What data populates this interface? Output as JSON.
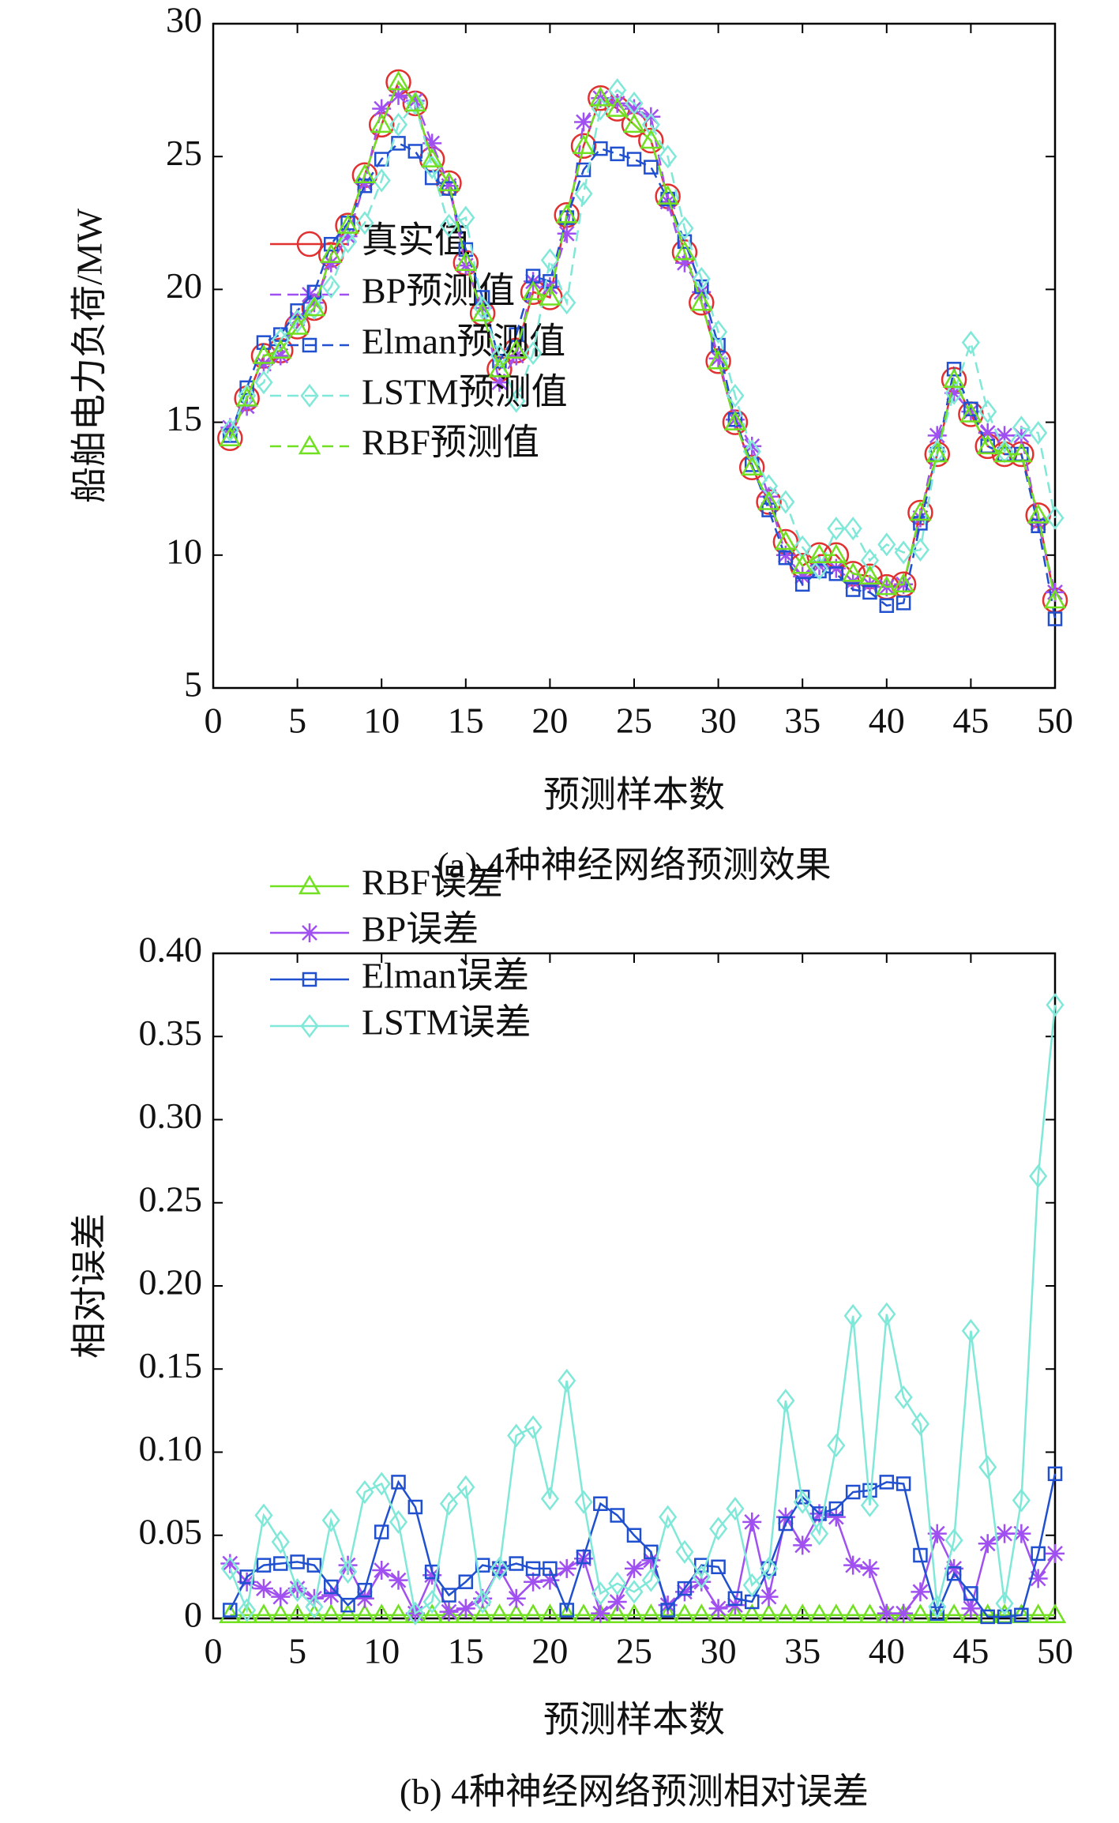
{
  "chart_data": [
    {
      "type": "line",
      "title": "(a) 4种神经网络预测效果",
      "xlabel": "预测样本数",
      "ylabel": "船舶电力负荷/MW",
      "x": [
        1,
        2,
        3,
        4,
        5,
        6,
        7,
        8,
        9,
        10,
        11,
        12,
        13,
        14,
        15,
        16,
        17,
        18,
        19,
        20,
        21,
        22,
        23,
        24,
        25,
        26,
        27,
        28,
        29,
        30,
        31,
        32,
        33,
        34,
        35,
        36,
        37,
        38,
        39,
        40,
        41,
        42,
        43,
        44,
        45,
        46,
        47,
        48,
        49,
        50
      ],
      "xlim": [
        0,
        50
      ],
      "xticks": [
        0,
        5,
        10,
        15,
        20,
        25,
        30,
        35,
        40,
        45,
        50
      ],
      "ylim": [
        5,
        30
      ],
      "yticks": [
        5,
        10,
        15,
        20,
        25,
        30
      ],
      "legend": "left",
      "series": [
        {
          "name": "真实值",
          "color": "#e03030",
          "marker": "circle",
          "dashed": false,
          "values": [
            14.4,
            15.9,
            17.5,
            17.7,
            18.6,
            19.3,
            21.3,
            22.4,
            24.3,
            26.2,
            27.8,
            27.0,
            24.9,
            24.0,
            21.0,
            19.1,
            17.0,
            17.7,
            19.9,
            19.7,
            22.8,
            25.4,
            27.2,
            26.8,
            26.2,
            25.6,
            23.5,
            21.4,
            19.5,
            17.3,
            15.0,
            13.3,
            12.0,
            10.5,
            9.6,
            10.0,
            10.0,
            9.3,
            9.2,
            8.8,
            8.9,
            11.6,
            13.8,
            16.6,
            15.3,
            14.1,
            13.8,
            13.8,
            11.5,
            8.3
          ]
        },
        {
          "name": "BP预测值",
          "color": "#a050f0",
          "marker": "star",
          "dashed": true,
          "values": [
            14.8,
            15.6,
            17.2,
            17.5,
            18.9,
            19.5,
            21.0,
            22.0,
            24.0,
            26.8,
            27.3,
            27.1,
            25.5,
            23.9,
            20.9,
            19.3,
            16.5,
            17.5,
            20.3,
            20.1,
            22.1,
            26.3,
            27.2,
            27.0,
            26.8,
            26.5,
            23.3,
            21.0,
            19.9,
            17.4,
            15.1,
            14.1,
            12.2,
            10.0,
            9.2,
            9.6,
            9.5,
            9.0,
            8.9,
            8.8,
            8.9,
            11.4,
            14.5,
            16.1,
            15.4,
            14.6,
            14.5,
            14.5,
            11.2,
            8.6
          ]
        },
        {
          "name": "Elman预测值",
          "color": "#2050d0",
          "marker": "square",
          "dashed": true,
          "values": [
            14.5,
            16.3,
            18.0,
            18.3,
            19.2,
            19.9,
            21.7,
            22.5,
            23.9,
            24.9,
            25.5,
            25.2,
            24.2,
            23.8,
            21.5,
            19.7,
            17.3,
            18.3,
            20.5,
            20.3,
            22.7,
            24.5,
            25.3,
            25.1,
            24.9,
            24.6,
            23.4,
            21.8,
            20.1,
            17.9,
            15.1,
            13.4,
            11.7,
            9.9,
            8.9,
            9.4,
            9.3,
            8.7,
            8.6,
            8.1,
            8.2,
            11.2,
            13.8,
            17.0,
            15.5,
            14.1,
            13.8,
            13.8,
            11.1,
            7.6
          ]
        },
        {
          "name": "LSTM预测值",
          "color": "#80e8d8",
          "marker": "diamond",
          "dashed": true,
          "values": [
            14.7,
            16.0,
            16.5,
            18.1,
            18.8,
            19.3,
            20.1,
            21.8,
            22.5,
            24.1,
            26.2,
            27.0,
            24.6,
            22.4,
            22.7,
            19.3,
            17.5,
            15.8,
            17.6,
            21.1,
            19.5,
            23.6,
            26.8,
            27.5,
            27.0,
            26.2,
            25.0,
            22.3,
            20.4,
            18.4,
            16.0,
            13.9,
            12.6,
            12.0,
            10.3,
            9.5,
            11.0,
            11.0,
            9.8,
            10.4,
            10.1,
            10.2,
            13.9,
            16.1,
            18.0,
            15.4,
            13.9,
            14.8,
            14.6,
            11.4
          ]
        },
        {
          "name": "RBF预测值",
          "color": "#70e020",
          "marker": "triangle",
          "dashed": true,
          "values": [
            14.4,
            15.9,
            17.5,
            17.7,
            18.6,
            19.3,
            21.3,
            22.4,
            24.3,
            26.2,
            27.8,
            27.0,
            24.9,
            24.0,
            21.0,
            19.1,
            17.0,
            17.7,
            19.9,
            19.7,
            22.8,
            25.4,
            27.2,
            26.8,
            26.2,
            25.6,
            23.5,
            21.4,
            19.5,
            17.3,
            15.0,
            13.3,
            12.0,
            10.5,
            9.6,
            10.0,
            10.0,
            9.3,
            9.2,
            8.8,
            8.9,
            11.6,
            13.8,
            16.6,
            15.3,
            14.1,
            13.8,
            13.8,
            11.5,
            8.3
          ]
        }
      ]
    },
    {
      "type": "line",
      "title": "(b) 4种神经网络预测相对误差",
      "xlabel": "预测样本数",
      "ylabel": "相对误差",
      "x": [
        1,
        2,
        3,
        4,
        5,
        6,
        7,
        8,
        9,
        10,
        11,
        12,
        13,
        14,
        15,
        16,
        17,
        18,
        19,
        20,
        21,
        22,
        23,
        24,
        25,
        26,
        27,
        28,
        29,
        30,
        31,
        32,
        33,
        34,
        35,
        36,
        37,
        38,
        39,
        40,
        41,
        42,
        43,
        44,
        45,
        46,
        47,
        48,
        49,
        50
      ],
      "xlim": [
        0,
        50
      ],
      "xticks": [
        0,
        5,
        10,
        15,
        20,
        25,
        30,
        35,
        40,
        45,
        50
      ],
      "ylim": [
        0,
        0.4
      ],
      "yticks": [
        0,
        0.05,
        {
          "value": 0.1,
          "label": "0.10"
        },
        0.15,
        {
          "value": 0.2,
          "label": "0.20"
        },
        0.25,
        {
          "value": 0.3,
          "label": "0.30"
        },
        0.35,
        {
          "value": 0.4,
          "label": "0.40"
        }
      ],
      "legend": "left",
      "series": [
        {
          "name": "RBF误差",
          "color": "#70e020",
          "marker": "triangle",
          "dashed": false,
          "values": [
            0.002,
            0.002,
            0.002,
            0.002,
            0.002,
            0.002,
            0.002,
            0.002,
            0.002,
            0.002,
            0.002,
            0.002,
            0.002,
            0.002,
            0.002,
            0.002,
            0.002,
            0.002,
            0.002,
            0.002,
            0.002,
            0.002,
            0.002,
            0.002,
            0.002,
            0.002,
            0.002,
            0.002,
            0.002,
            0.002,
            0.002,
            0.002,
            0.002,
            0.002,
            0.002,
            0.002,
            0.002,
            0.002,
            0.002,
            0.002,
            0.002,
            0.002,
            0.002,
            0.002,
            0.002,
            0.002,
            0.002,
            0.002,
            0.002,
            0.002
          ]
        },
        {
          "name": "BP误差",
          "color": "#a050f0",
          "marker": "star",
          "dashed": false,
          "values": [
            0.033,
            0.022,
            0.018,
            0.013,
            0.018,
            0.012,
            0.014,
            0.032,
            0.012,
            0.029,
            0.023,
            0.003,
            0.026,
            0.004,
            0.006,
            0.012,
            0.03,
            0.012,
            0.022,
            0.023,
            0.03,
            0.036,
            0.003,
            0.01,
            0.03,
            0.035,
            0.008,
            0.016,
            0.022,
            0.006,
            0.008,
            0.058,
            0.013,
            0.061,
            0.044,
            0.063,
            0.061,
            0.032,
            0.03,
            0.003,
            0.003,
            0.016,
            0.051,
            0.03,
            0.006,
            0.045,
            0.051,
            0.051,
            0.024,
            0.039
          ]
        },
        {
          "name": "Elman误差",
          "color": "#2050d0",
          "marker": "square",
          "dashed": false,
          "values": [
            0.005,
            0.025,
            0.032,
            0.033,
            0.034,
            0.032,
            0.019,
            0.008,
            0.017,
            0.052,
            0.082,
            0.067,
            0.028,
            0.014,
            0.022,
            0.032,
            0.03,
            0.033,
            0.03,
            0.03,
            0.005,
            0.037,
            0.069,
            0.062,
            0.05,
            0.04,
            0.005,
            0.018,
            0.032,
            0.031,
            0.012,
            0.01,
            0.03,
            0.057,
            0.073,
            0.063,
            0.066,
            0.076,
            0.077,
            0.082,
            0.081,
            0.038,
            0.003,
            0.027,
            0.015,
            0.001,
            0.001,
            0.002,
            0.039,
            0.087
          ]
        },
        {
          "name": "LSTM误差",
          "color": "#80e8d8",
          "marker": "diamond",
          "dashed": false,
          "values": [
            0.03,
            0.005,
            0.062,
            0.046,
            0.017,
            0.007,
            0.059,
            0.028,
            0.076,
            0.081,
            0.058,
            0.003,
            0.01,
            0.069,
            0.079,
            0.01,
            0.03,
            0.11,
            0.115,
            0.072,
            0.143,
            0.07,
            0.015,
            0.021,
            0.016,
            0.023,
            0.061,
            0.04,
            0.025,
            0.054,
            0.066,
            0.02,
            0.03,
            0.131,
            0.07,
            0.051,
            0.104,
            0.182,
            0.068,
            0.183,
            0.133,
            0.117,
            0.007,
            0.047,
            0.173,
            0.091,
            0.009,
            0.071,
            0.266,
            0.369
          ]
        }
      ]
    }
  ]
}
